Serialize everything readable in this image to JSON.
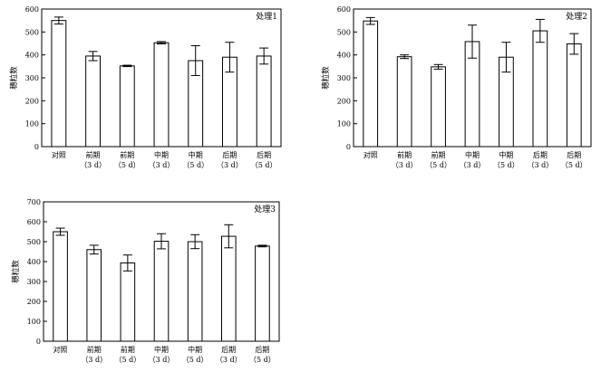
{
  "chart_data": [
    {
      "type": "bar",
      "title": "处理1",
      "ylabel": "穗粒数",
      "ylim": [
        0,
        600
      ],
      "yticks": [
        0,
        100,
        200,
        300,
        400,
        500,
        600
      ],
      "categories": [
        {
          "line1": "对照",
          "line2": ""
        },
        {
          "line1": "前期",
          "line2": "（3 d）"
        },
        {
          "line1": "前期",
          "line2": "（5 d）"
        },
        {
          "line1": "中期",
          "line2": "（3 d）"
        },
        {
          "line1": "中期",
          "line2": "（5 d）"
        },
        {
          "line1": "后期",
          "line2": "（3 d）"
        },
        {
          "line1": "后期",
          "line2": "（5 d）"
        }
      ],
      "values": [
        550,
        395,
        352,
        453,
        375,
        390,
        395
      ],
      "errors": [
        15,
        20,
        3,
        5,
        65,
        65,
        35
      ]
    },
    {
      "type": "bar",
      "title": "处理2",
      "ylabel": "穗粒数",
      "ylim": [
        0,
        600
      ],
      "yticks": [
        0,
        100,
        200,
        300,
        400,
        500,
        600
      ],
      "categories": [
        {
          "line1": "对照",
          "line2": ""
        },
        {
          "line1": "前期",
          "line2": "（3 d）"
        },
        {
          "line1": "前期",
          "line2": "（5 d）"
        },
        {
          "line1": "中期",
          "line2": "（3 d）"
        },
        {
          "line1": "中期",
          "line2": "（5 d）"
        },
        {
          "line1": "后期",
          "line2": "（3 d）"
        },
        {
          "line1": "后期",
          "line2": "（5 d）"
        }
      ],
      "values": [
        548,
        392,
        348,
        458,
        390,
        505,
        448
      ],
      "errors": [
        15,
        8,
        10,
        72,
        65,
        50,
        45
      ]
    },
    {
      "type": "bar",
      "title": "处理3",
      "ylabel": "穗粒数",
      "ylim": [
        0,
        700
      ],
      "yticks": [
        0,
        100,
        200,
        300,
        400,
        500,
        600,
        700
      ],
      "categories": [
        {
          "line1": "对照",
          "line2": ""
        },
        {
          "line1": "前期",
          "line2": "（3 d）"
        },
        {
          "line1": "前期",
          "line2": "（5 d）"
        },
        {
          "line1": "中期",
          "line2": "（3 d）"
        },
        {
          "line1": "中期",
          "line2": "（5 d）"
        },
        {
          "line1": "后期",
          "line2": "（3 d）"
        },
        {
          "line1": "后期",
          "line2": "（5 d）"
        }
      ],
      "values": [
        550,
        460,
        393,
        502,
        500,
        527,
        478
      ],
      "errors": [
        18,
        22,
        40,
        38,
        35,
        58,
        4
      ]
    }
  ]
}
